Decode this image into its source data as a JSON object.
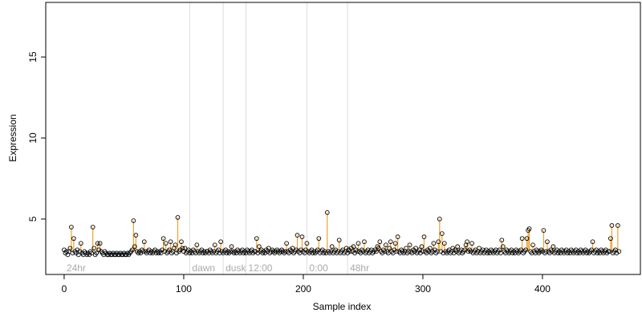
{
  "chart_data": {
    "type": "scatter",
    "x_label": "Sample index",
    "y_label": "Expression",
    "xlim": [
      -15.4,
      481.9
    ],
    "ylim": [
      1.58,
      18.37
    ],
    "xticks": [
      0,
      100,
      200,
      300,
      400
    ],
    "yticks": [
      5,
      10,
      15
    ],
    "baseline": 3.0,
    "above_color": "#f0a030",
    "below_color": "#a8c0e8",
    "point_color": "#000000",
    "vlines": [
      105,
      133,
      152,
      203,
      237
    ],
    "vline_color": "#dddddd",
    "annotations": [
      {
        "x": 0,
        "text": "24hr"
      },
      {
        "x": 105,
        "text": "dawn"
      },
      {
        "x": 133,
        "text": "dusk"
      },
      {
        "x": 152,
        "text": "12:00"
      },
      {
        "x": 203,
        "text": "0:00"
      },
      {
        "x": 237,
        "text": "48hr"
      }
    ],
    "values": [
      3.1,
      2.9,
      3.0,
      2.8,
      3.0,
      3.2,
      4.5,
      2.9,
      3.8,
      3.0,
      2.9,
      3.1,
      2.8,
      3.0,
      3.5,
      2.9,
      2.8,
      3.0,
      2.9,
      2.8,
      2.9,
      2.8,
      3.0,
      2.9,
      4.5,
      3.2,
      2.8,
      2.9,
      3.5,
      3.1,
      3.5,
      3.0,
      2.9,
      2.8,
      3.0,
      2.9,
      2.8,
      2.8,
      2.9,
      2.8,
      2.8,
      2.9,
      2.8,
      2.8,
      2.9,
      2.8,
      2.8,
      2.9,
      2.8,
      2.8,
      2.9,
      2.8,
      2.8,
      2.9,
      2.8,
      2.9,
      3.0,
      3.1,
      4.9,
      3.3,
      4.0,
      3.0,
      2.9,
      3.0,
      2.9,
      3.1,
      3.0,
      3.6,
      3.0,
      2.9,
      3.0,
      3.1,
      2.9,
      3.0,
      2.9,
      3.0,
      3.1,
      2.9,
      3.0,
      2.9,
      3.0,
      2.9,
      3.1,
      3.8,
      3.0,
      3.5,
      2.9,
      3.0,
      3.1,
      3.6,
      2.9,
      3.0,
      3.2,
      3.4,
      2.9,
      5.1,
      3.0,
      3.1,
      3.6,
      3.2,
      3.0,
      3.2,
      2.9,
      3.0,
      3.1,
      2.9,
      3.0,
      2.9,
      3.1,
      3.0,
      2.9,
      3.4,
      3.0,
      2.9,
      3.0,
      3.1,
      2.9,
      3.0,
      2.9,
      3.0,
      3.0,
      2.9,
      3.1,
      3.0,
      2.9,
      3.0,
      3.4,
      2.9,
      3.0,
      3.1,
      2.9,
      3.6,
      3.0,
      2.9,
      3.0,
      3.1,
      2.9,
      3.0,
      2.9,
      3.0,
      3.3,
      3.0,
      2.9,
      3.0,
      2.9,
      3.1,
      3.0,
      2.9,
      3.0,
      3.1,
      2.9,
      3.0,
      2.9,
      3.1,
      3.0,
      2.9,
      3.0,
      3.1,
      2.9,
      3.0,
      3.0,
      3.8,
      2.9,
      3.3,
      3.0,
      3.1,
      2.9,
      3.0,
      2.9,
      3.1,
      3.0,
      3.2,
      2.9,
      3.0,
      3.1,
      3.0,
      2.9,
      3.0,
      3.1,
      3.0,
      2.9,
      3.0,
      3.1,
      3.0,
      2.9,
      3.0,
      3.5,
      3.0,
      2.9,
      3.1,
      3.0,
      3.2,
      2.9,
      3.0,
      3.1,
      4.0,
      3.0,
      2.9,
      3.1,
      3.9,
      3.0,
      2.9,
      3.1,
      3.5,
      3.0,
      2.9,
      3.0,
      3.1,
      2.9,
      3.0,
      2.9,
      3.0,
      3.1,
      3.8,
      2.9,
      3.0,
      3.1,
      2.9,
      3.0,
      2.9,
      5.4,
      3.0,
      2.9,
      3.0,
      3.3,
      2.9,
      3.0,
      3.1,
      2.9,
      3.0,
      3.7,
      2.9,
      3.0,
      3.1,
      2.9,
      3.0,
      3.2,
      2.9,
      3.1,
      3.0,
      3.2,
      3.0,
      3.3,
      2.9,
      3.1,
      3.0,
      3.5,
      3.0,
      2.9,
      3.1,
      3.0,
      3.6,
      2.9,
      3.0,
      3.1,
      2.9,
      3.0,
      3.1,
      2.9,
      3.0,
      3.1,
      3.0,
      3.3,
      3.2,
      3.6,
      3.0,
      2.9,
      3.1,
      3.0,
      3.4,
      3.0,
      2.9,
      3.2,
      3.6,
      3.0,
      2.9,
      3.1,
      3.5,
      3.0,
      3.9,
      3.0,
      2.9,
      3.1,
      3.0,
      2.9,
      3.0,
      3.2,
      2.9,
      3.0,
      3.4,
      3.0,
      2.9,
      3.1,
      3.0,
      3.2,
      2.9,
      3.0,
      3.1,
      2.9,
      3.3,
      3.0,
      3.9,
      3.0,
      2.9,
      3.1,
      3.0,
      3.2,
      2.9,
      3.0,
      3.5,
      3.1,
      2.9,
      3.0,
      3.6,
      5.0,
      3.0,
      4.1,
      2.9,
      3.5,
      3.0,
      2.9,
      3.0,
      3.1,
      2.9,
      3.0,
      3.2,
      2.9,
      3.1,
      3.0,
      3.3,
      2.9,
      3.0,
      3.1,
      2.9,
      3.0,
      3.1,
      3.4,
      3.6,
      3.0,
      3.1,
      3.0,
      3.5,
      2.9,
      3.0,
      3.1,
      2.9,
      3.0,
      3.2,
      2.9,
      3.0,
      3.1,
      2.9,
      3.0,
      3.1,
      2.9,
      3.0,
      2.9,
      3.1,
      3.0,
      2.9,
      3.0,
      3.1,
      2.9,
      3.0,
      3.1,
      2.9,
      3.7,
      3.3,
      3.0,
      2.9,
      3.1,
      3.0,
      2.9,
      3.0,
      3.1,
      2.9,
      3.0,
      2.9,
      3.1,
      3.0,
      2.9,
      3.0,
      3.1,
      3.8,
      2.9,
      3.0,
      3.1,
      3.8,
      4.3,
      4.4,
      3.0,
      2.9,
      3.4,
      3.0,
      2.9,
      3.1,
      3.0,
      2.9,
      3.0,
      3.1,
      3.0,
      4.3,
      2.9,
      3.0,
      3.6,
      3.0,
      2.9,
      3.1,
      3.0,
      3.3,
      2.9,
      3.0,
      3.1,
      2.9,
      3.0,
      2.9,
      3.1,
      3.0,
      2.9,
      3.0,
      3.1,
      2.9,
      3.0,
      2.9,
      3.1,
      3.0,
      2.9,
      3.0,
      3.1,
      2.9,
      3.0,
      2.9,
      3.1,
      3.0,
      2.9,
      3.0,
      3.1,
      2.9,
      3.0,
      2.9,
      3.0,
      3.1,
      3.6,
      2.9,
      3.0,
      3.1,
      2.9,
      3.0,
      2.9,
      3.1,
      3.0,
      2.9,
      3.0,
      3.1,
      2.9,
      3.0,
      3.0,
      3.8,
      4.6,
      2.9,
      3.0,
      3.1,
      2.9,
      4.6,
      3.0
    ]
  }
}
